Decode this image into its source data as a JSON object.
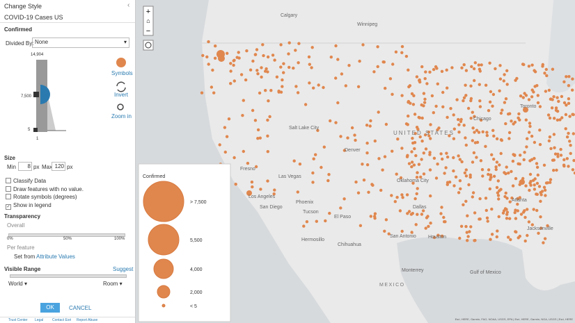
{
  "panel": {
    "back_title": "Change Style",
    "layer": "COVID-19 Cases US",
    "field": "Confirmed",
    "divided_by_label": "Divided By:",
    "divided_by": "None",
    "slider": {
      "max": "14,904",
      "mid": "7,500",
      "min": "5",
      "bottom": "1"
    },
    "tools": [
      "Symbols",
      "Invert",
      "Zoom in"
    ],
    "size": {
      "title": "Size",
      "min_label": "Min",
      "min": "8",
      "max_label": "Max",
      "max": "120",
      "unit": "px"
    },
    "options": [
      {
        "label": "Classify Data",
        "checked": false
      },
      {
        "label": "Draw features with no value.",
        "checked": false
      },
      {
        "label": "Rotate symbols (degrees)",
        "checked": false
      },
      {
        "label": "Show in legend",
        "checked": true
      }
    ],
    "transparency": {
      "title": "Transparency",
      "overall": "Overall",
      "ticks": [
        "0%",
        "50%",
        "100%"
      ],
      "per_feature": "Per feature",
      "set_from": "Set from",
      "attribute_values": "Attribute Values"
    },
    "visible_range": {
      "title": "Visible Range",
      "suggest": "Suggest",
      "from": "World",
      "to": "Room"
    },
    "buttons": [
      "OK",
      "CANCEL"
    ],
    "footer_links": [
      "Trust Center",
      "Legal",
      "Contact Esri",
      "Report Abuse"
    ]
  },
  "map": {
    "labels": [
      "Calgary",
      "Winnipeg",
      "Salt Lake City",
      "Denver",
      "Fresno",
      "Las Vegas",
      "Los Angeles",
      "San Diego",
      "Phoenix",
      "Tucson",
      "El Paso",
      "Oklahoma City",
      "Dallas",
      "San Antonio",
      "Houston",
      "Chicago",
      "Toronto",
      "Atlanta",
      "Jacksonville",
      "Hermosillo",
      "Chihuahua",
      "Monterrey",
      "Gulf of Mexico"
    ],
    "country": "UNITED STATES",
    "country2": "MEXICO",
    "attribution": "Esri, HERE, Garmin, FAO, NOAA, USGS, EPA | Esri, HERE, Garmin, NGA, USGS | Esri, HERE"
  },
  "legend": {
    "title": "Confirmed",
    "items": [
      "> 7,500",
      "5,500",
      "4,000",
      "2,000",
      "< 5"
    ]
  }
}
